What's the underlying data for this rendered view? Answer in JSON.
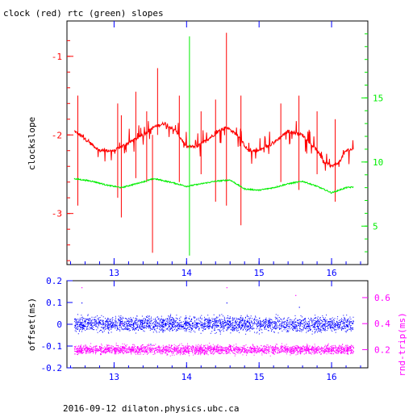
{
  "chart_data": [
    {
      "type": "line",
      "title": "clock (red) rtc (green) slopes",
      "ylabel": "clockslope",
      "xlim": [
        12.35,
        16.5
      ],
      "ylim": [
        -3.65,
        -0.55
      ],
      "y2lim": [
        2.0,
        21.0
      ],
      "x_ticks": [
        "13",
        "14",
        "15",
        "16"
      ],
      "x_tick_values": [
        13,
        14,
        15,
        16
      ],
      "y_ticks": [
        "-1",
        "-2",
        "-3"
      ],
      "y_tick_values": [
        -1,
        -2,
        -3
      ],
      "y2_ticks": [
        "5",
        "10",
        "15"
      ],
      "y2_tick_values": [
        5,
        10,
        15
      ],
      "grid": false,
      "series": [
        {
          "name": "clock",
          "color": "#ff0000",
          "axis": "left",
          "x": [
            12.45,
            12.6,
            12.8,
            13.0,
            13.2,
            13.4,
            13.55,
            13.7,
            13.85,
            14.0,
            14.15,
            14.3,
            14.45,
            14.55,
            14.7,
            14.85,
            15.0,
            15.2,
            15.4,
            15.6,
            15.8,
            15.9,
            16.0,
            16.1,
            16.2,
            16.3
          ],
          "y": [
            -1.95,
            -2.05,
            -2.2,
            -2.2,
            -2.1,
            -2.0,
            -1.9,
            -1.85,
            -1.95,
            -2.15,
            -2.15,
            -2.05,
            -1.95,
            -1.9,
            -2.0,
            -2.2,
            -2.2,
            -2.1,
            -1.95,
            -2.0,
            -2.2,
            -2.35,
            -2.4,
            -2.35,
            -2.2,
            -2.18
          ],
          "spikes": [
            {
              "x": 12.5,
              "lo": -2.9,
              "hi": -1.5
            },
            {
              "x": 13.05,
              "lo": -2.8,
              "hi": -1.6
            },
            {
              "x": 13.1,
              "lo": -3.05,
              "hi": -1.75
            },
            {
              "x": 13.3,
              "lo": -2.55,
              "hi": -1.45
            },
            {
              "x": 13.45,
              "lo": -2.6,
              "hi": -1.7
            },
            {
              "x": 13.53,
              "lo": -3.5,
              "hi": -2.0
            },
            {
              "x": 13.6,
              "lo": -2.0,
              "hi": -1.15
            },
            {
              "x": 13.9,
              "lo": -2.6,
              "hi": -1.5
            },
            {
              "x": 14.2,
              "lo": -2.5,
              "hi": -1.7
            },
            {
              "x": 14.4,
              "lo": -2.85,
              "hi": -1.55
            },
            {
              "x": 14.55,
              "lo": -2.9,
              "hi": -0.7
            },
            {
              "x": 14.75,
              "lo": -3.15,
              "hi": -1.5
            },
            {
              "x": 15.3,
              "lo": -2.6,
              "hi": -1.6
            },
            {
              "x": 15.55,
              "lo": -2.7,
              "hi": -1.5
            },
            {
              "x": 15.8,
              "lo": -2.5,
              "hi": -1.7
            },
            {
              "x": 16.05,
              "lo": -2.85,
              "hi": -1.8
            }
          ]
        },
        {
          "name": "rtc",
          "color": "#00ee00",
          "axis": "right",
          "x": [
            12.45,
            12.7,
            12.9,
            13.1,
            13.3,
            13.55,
            13.8,
            14.0,
            14.2,
            14.4,
            14.6,
            14.8,
            15.0,
            15.2,
            15.4,
            15.6,
            15.8,
            16.0,
            16.2,
            16.3
          ],
          "y": [
            8.7,
            8.5,
            8.2,
            8.0,
            8.3,
            8.7,
            8.4,
            8.1,
            8.3,
            8.5,
            8.6,
            7.9,
            7.8,
            8.0,
            8.3,
            8.5,
            8.1,
            7.6,
            8.0,
            8.05
          ],
          "spikes": [
            {
              "x": 14.04,
              "lo": 2.7,
              "hi": 19.8
            }
          ]
        }
      ]
    },
    {
      "type": "scatter",
      "xlim": [
        12.35,
        16.5
      ],
      "ylim": [
        -0.2,
        0.2
      ],
      "y2lim": [
        0.06,
        0.73
      ],
      "ylabel": "offset(ms)",
      "y2label": "rnd-trip(ms)",
      "x_ticks": [
        "13",
        "14",
        "15",
        "16"
      ],
      "x_tick_values": [
        13,
        14,
        15,
        16
      ],
      "y_ticks": [
        "0.2",
        "0.1",
        "0",
        "-0.1",
        "-0.2"
      ],
      "y_tick_values": [
        0.2,
        0.1,
        0,
        -0.1,
        -0.2
      ],
      "y2_ticks": [
        "0.6",
        "0.4",
        "0.2"
      ],
      "y2_tick_values": [
        0.6,
        0.4,
        0.2
      ],
      "series": [
        {
          "name": "offset",
          "color": "#0000ff",
          "axis": "left",
          "x_range": [
            12.45,
            16.3
          ],
          "center": 0.0,
          "spread": 0.03,
          "outliers": [
            {
              "x": 12.55,
              "y": 0.1
            },
            {
              "x": 13.5,
              "y": -0.09
            },
            {
              "x": 14.55,
              "y": 0.1
            },
            {
              "x": 15.55,
              "y": 0.08
            },
            {
              "x": 16.25,
              "y": -0.1
            }
          ]
        },
        {
          "name": "rnd-trip",
          "color": "#ff00ff",
          "axis": "right",
          "x_range": [
            12.45,
            16.3
          ],
          "center": 0.2,
          "spread": 0.03,
          "outliers": [
            {
              "x": 12.55,
              "y": 0.68
            },
            {
              "x": 13.1,
              "y": 0.4
            },
            {
              "x": 14.55,
              "y": 0.68
            },
            {
              "x": 15.5,
              "y": 0.62
            }
          ]
        }
      ]
    }
  ],
  "footer": "2016-09-12  dilaton.physics.ubc.ca"
}
